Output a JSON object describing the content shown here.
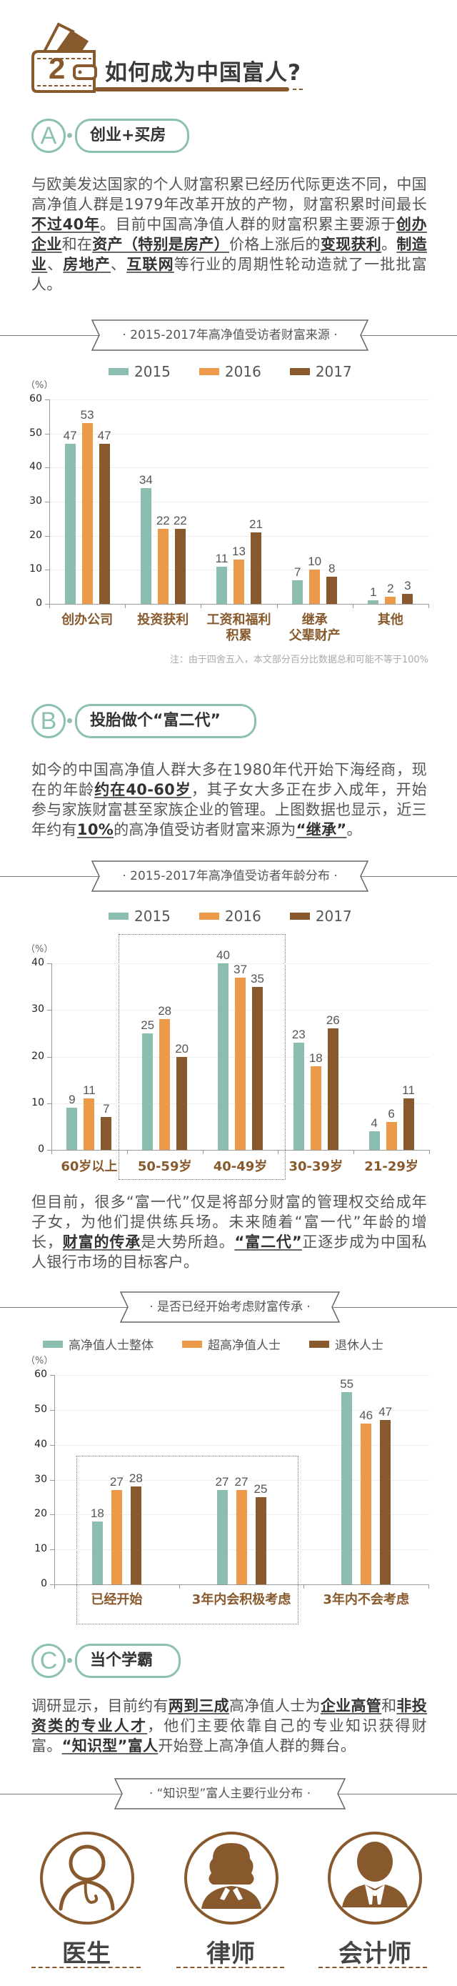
{
  "header": {
    "number": "2",
    "title": "如何成为中国富人?"
  },
  "colors": {
    "teal": "#8bbdb1",
    "orange": "#ec9a4a",
    "brown": "#87592c"
  },
  "section_a": {
    "letter": "A",
    "label": "创业+买房",
    "paragraph": [
      {
        "t": "与欧美发达国家的个人财富积累已经历代际更迭不同，中国高净值人群是1979年改革开放的产物，财富积累时间最长"
      },
      {
        "t": "不过40年",
        "b": true
      },
      {
        "t": "。目前中国高净值人群的财富积累主要源于"
      },
      {
        "t": "创办企业",
        "b": true
      },
      {
        "t": "和在"
      },
      {
        "t": "资产（特别是房产）",
        "b": true
      },
      {
        "t": "价格上涨后的"
      },
      {
        "t": "变现获利",
        "b": true
      },
      {
        "t": "。"
      },
      {
        "t": "制造业",
        "b": true
      },
      {
        "t": "、"
      },
      {
        "t": "房地产",
        "b": true
      },
      {
        "t": "、"
      },
      {
        "t": "互联网",
        "b": true
      },
      {
        "t": "等行业的周期性轮动造就了一批批富人。"
      }
    ]
  },
  "chart1": {
    "banner": "· 2015-2017年高净值受访者财富来源 ·",
    "unit": "（%）",
    "note": "注：由于四舍五入，本文部分百分比数据总和可能不等于100%"
  },
  "section_b": {
    "letter": "B",
    "label": "投胎做个“富二代”",
    "paragraph": [
      {
        "t": "如今的中国高净值人群大多在1980年代开始下海经商，现在的年龄"
      },
      {
        "t": "约在40-60岁",
        "b": true
      },
      {
        "t": "，其子女大多正在步入成年，开始参与家族财富甚至家族企业的管理。上图数据也显示，近三年约有"
      },
      {
        "t": "10%",
        "b": true
      },
      {
        "t": "的高净值受访者财富来源为"
      },
      {
        "t": "“继承”",
        "b": true
      },
      {
        "t": "。"
      }
    ]
  },
  "chart2": {
    "banner": "· 2015-2017年高净值受访者年龄分布 ·",
    "unit": "（%）"
  },
  "paragraph_b2": [
    {
      "t": "但目前，很多“富一代”仅是将部分财富的管理权交给成年子女，为他们提供练兵场。未来随着“富一代”年龄的增长，"
    },
    {
      "t": "财富的传承",
      "b": true
    },
    {
      "t": "是大势所趋。"
    },
    {
      "t": "“富二代”",
      "b": true
    },
    {
      "t": "正逐步成为中国私人银行市场的目标客户。"
    }
  ],
  "chart3": {
    "banner": "· 是否已经开始考虑财富传承 ·",
    "unit": "（%）"
  },
  "section_c": {
    "letter": "C",
    "label": "当个学霸",
    "paragraph": [
      {
        "t": "调研显示，目前约有"
      },
      {
        "t": "两到三成",
        "b": true
      },
      {
        "t": "高净值人士为"
      },
      {
        "t": "企业高管",
        "b": true
      },
      {
        "t": "和"
      },
      {
        "t": "非投资类的专业人才",
        "b": true
      },
      {
        "t": "，他们主要依靠自己的专业知识获得财富。"
      },
      {
        "t": "“知识型”富人",
        "b": true
      },
      {
        "t": "开始登上高净值人群的舞台。"
      }
    ]
  },
  "professions": {
    "banner": "· “知识型”富人主要行业分布 ·",
    "items": [
      {
        "label": "医生",
        "icon": "doctor-icon"
      },
      {
        "label": "律师",
        "icon": "lawyer-icon"
      },
      {
        "label": "会计师",
        "icon": "accountant-icon"
      }
    ]
  },
  "chart_data": [
    {
      "type": "bar",
      "title": "2015-2017年高净值受访者财富来源",
      "ylabel": "（%）",
      "ylim": [
        0,
        60
      ],
      "yticks": [
        0,
        10,
        20,
        30,
        40,
        50,
        60
      ],
      "grid": true,
      "legend": "top-center",
      "categories": [
        "创办公司",
        "投资获利",
        "工资和福利\n积累",
        "继承\n父辈财产",
        "其他"
      ],
      "series": [
        {
          "name": "2015",
          "color": "#8bbdb1",
          "values": [
            47,
            34,
            11,
            7,
            1
          ]
        },
        {
          "name": "2016",
          "color": "#ec9a4a",
          "values": [
            53,
            22,
            13,
            10,
            2
          ]
        },
        {
          "name": "2017",
          "color": "#87592c",
          "values": [
            47,
            22,
            21,
            8,
            3
          ]
        }
      ]
    },
    {
      "type": "bar",
      "title": "2015-2017年高净值受访者年龄分布",
      "ylabel": "（%）",
      "ylim": [
        0,
        40
      ],
      "yticks": [
        0,
        10,
        20,
        30,
        40
      ],
      "grid": true,
      "legend": "top-center",
      "categories": [
        "60岁以上",
        "50-59岁",
        "40-49岁",
        "30-39岁",
        "21-29岁"
      ],
      "highlight": [
        "50-59岁",
        "40-49岁"
      ],
      "series": [
        {
          "name": "2015",
          "color": "#8bbdb1",
          "values": [
            9,
            25,
            40,
            23,
            4
          ]
        },
        {
          "name": "2016",
          "color": "#ec9a4a",
          "values": [
            11,
            28,
            37,
            18,
            6
          ]
        },
        {
          "name": "2017",
          "color": "#87592c",
          "values": [
            7,
            20,
            35,
            26,
            11
          ]
        }
      ]
    },
    {
      "type": "bar",
      "title": "是否已经开始考虑财富传承",
      "ylabel": "（%）",
      "ylim": [
        0,
        60
      ],
      "yticks": [
        0,
        10,
        20,
        30,
        40,
        50,
        60
      ],
      "grid": true,
      "legend": "top-center",
      "categories": [
        "已经开始",
        "3年内会积极考虑",
        "3年内不会考虑"
      ],
      "highlight": [
        "已经开始",
        "3年内会积极考虑"
      ],
      "series": [
        {
          "name": "高净值人士整体",
          "color": "#8bbdb1",
          "values": [
            18,
            27,
            55
          ]
        },
        {
          "name": "超高净值人士",
          "color": "#ec9a4a",
          "values": [
            27,
            27,
            46
          ]
        },
        {
          "name": "退休人士",
          "color": "#87592c",
          "values": [
            28,
            25,
            47
          ]
        }
      ]
    }
  ]
}
